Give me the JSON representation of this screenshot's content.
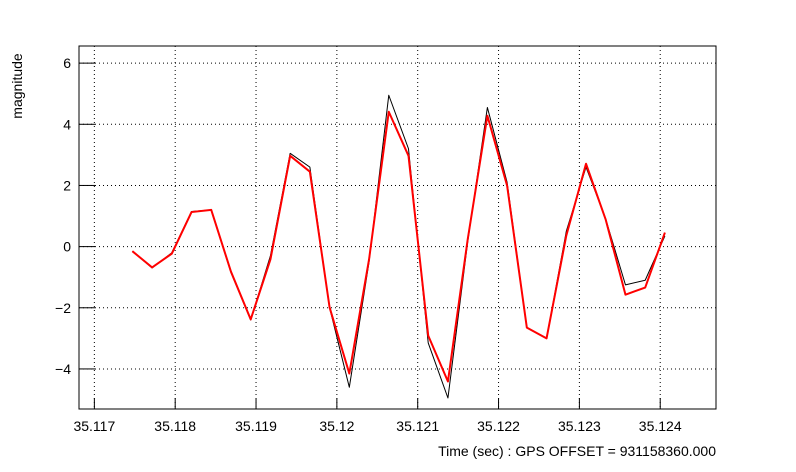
{
  "chart_data": {
    "type": "line",
    "xlabel": "Time (sec) : GPS OFFSET = 931158360.000",
    "ylabel": "magnitude",
    "x": [
      35.11747,
      35.117714,
      35.117958,
      35.118202,
      35.118446,
      35.11869,
      35.118934,
      35.119178,
      35.119422,
      35.119666,
      35.11991,
      35.120154,
      35.120398,
      35.120642,
      35.120886,
      35.12113,
      35.121374,
      35.121618,
      35.121862,
      35.122106,
      35.12235,
      35.122594,
      35.122838,
      35.123082,
      35.123326,
      35.12357,
      35.123814,
      35.124058
    ],
    "series": [
      {
        "color": "#000000",
        "width": 1,
        "values": [
          -0.15,
          -0.7,
          -0.2,
          1.15,
          1.2,
          -0.85,
          -2.4,
          -0.3,
          3.05,
          2.6,
          -2.0,
          -4.6,
          -0.5,
          4.95,
          3.2,
          -3.15,
          -4.95,
          0.15,
          4.55,
          2.1,
          -2.65,
          -3.0,
          0.5,
          2.6,
          0.9,
          -1.25,
          -1.1,
          0.35
        ]
      },
      {
        "color": "#ff0000",
        "width": 2,
        "values": [
          -0.15,
          -0.68,
          -0.23,
          1.13,
          1.2,
          -0.82,
          -2.38,
          -0.42,
          2.97,
          2.45,
          -1.99,
          -4.15,
          -0.42,
          4.41,
          2.97,
          -2.91,
          -4.41,
          0.23,
          4.28,
          1.99,
          -2.65,
          -3.0,
          0.36,
          2.71,
          0.88,
          -1.57,
          -1.34,
          0.46
        ]
      }
    ],
    "xlim": [
      35.11681,
      35.12469
    ],
    "ylim": [
      -5.31,
      6.56
    ],
    "xticks": [
      35.117,
      35.118,
      35.119,
      35.12,
      35.121,
      35.122,
      35.123,
      35.124
    ],
    "yticks": [
      {
        "value": -4,
        "label": "−4"
      },
      {
        "value": -2,
        "label": "−2"
      },
      0,
      2,
      4,
      6
    ],
    "grid": true
  }
}
